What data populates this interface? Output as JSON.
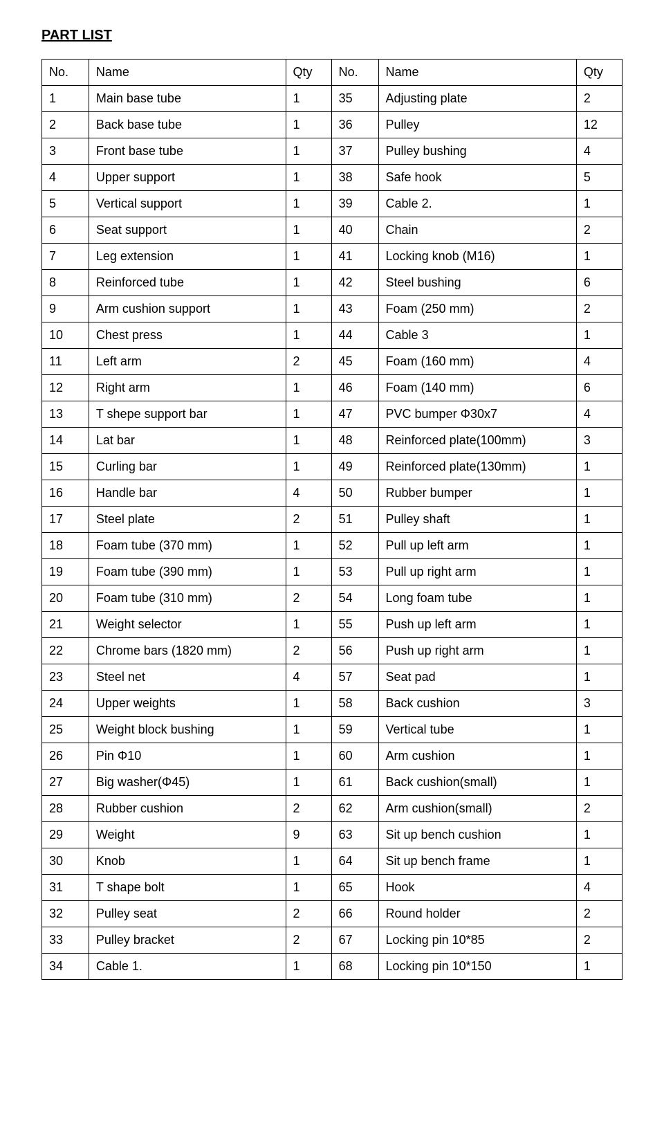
{
  "title": "PART LIST",
  "headers": {
    "no1": "No.",
    "name1": "Name",
    "qty1": "Qty",
    "no2": "No.",
    "name2": "Name",
    "qty2": "Qty"
  },
  "rows": [
    {
      "no1": "1",
      "name1": "Main base tube",
      "qty1": "1",
      "no2": "35",
      "name2": "Adjusting plate",
      "qty2": "2"
    },
    {
      "no1": "2",
      "name1": "Back base tube",
      "qty1": "1",
      "no2": "36",
      "name2": "Pulley",
      "qty2": "12"
    },
    {
      "no1": "3",
      "name1": "Front base tube",
      "qty1": "1",
      "no2": "37",
      "name2": "Pulley bushing",
      "qty2": "4"
    },
    {
      "no1": "4",
      "name1": "Upper support",
      "qty1": "1",
      "no2": "38",
      "name2": "Safe hook",
      "qty2": "5"
    },
    {
      "no1": "5",
      "name1": "Vertical support",
      "qty1": "1",
      "no2": "39",
      "name2": "Cable 2.",
      "qty2": "1"
    },
    {
      "no1": "6",
      "name1": "Seat support",
      "qty1": "1",
      "no2": "40",
      "name2": "Chain",
      "qty2": "2"
    },
    {
      "no1": "7",
      "name1": "Leg extension",
      "qty1": "1",
      "no2": "41",
      "name2": "Locking knob (M16)",
      "qty2": "1"
    },
    {
      "no1": "8",
      "name1": "Reinforced tube",
      "qty1": "1",
      "no2": "42",
      "name2": "Steel bushing",
      "qty2": "6"
    },
    {
      "no1": "9",
      "name1": "Arm cushion support",
      "qty1": "1",
      "no2": "43",
      "name2": "Foam (250 mm)",
      "qty2": "2"
    },
    {
      "no1": "10",
      "name1": "Chest press",
      "qty1": "1",
      "no2": "44",
      "name2": "Cable 3",
      "qty2": "1"
    },
    {
      "no1": "11",
      "name1": "Left arm",
      "qty1": "2",
      "no2": "45",
      "name2": "Foam (160 mm)",
      "qty2": "4"
    },
    {
      "no1": "12",
      "name1": "Right arm",
      "qty1": "1",
      "no2": "46",
      "name2": "Foam (140 mm)",
      "qty2": "6"
    },
    {
      "no1": "13",
      "name1": "T shepe support bar",
      "qty1": "1",
      "no2": "47",
      "name2": "PVC bumper Φ30x7",
      "qty2": "4"
    },
    {
      "no1": "14",
      "name1": "Lat bar",
      "qty1": "1",
      "no2": "48",
      "name2": "Reinforced plate(100mm)",
      "qty2": "3"
    },
    {
      "no1": "15",
      "name1": "Curling bar",
      "qty1": "1",
      "no2": "49",
      "name2": "Reinforced plate(130mm)",
      "qty2": "1"
    },
    {
      "no1": "16",
      "name1": "Handle bar",
      "qty1": "4",
      "no2": "50",
      "name2": "Rubber bumper",
      "qty2": "1"
    },
    {
      "no1": "17",
      "name1": "Steel plate",
      "qty1": "2",
      "no2": "51",
      "name2": "Pulley shaft",
      "qty2": "1"
    },
    {
      "no1": "18",
      "name1": "Foam tube (370 mm)",
      "qty1": "1",
      "no2": "52",
      "name2": "Pull up left arm",
      "qty2": "1"
    },
    {
      "no1": "19",
      "name1": "Foam tube (390 mm)",
      "qty1": "1",
      "no2": "53",
      "name2": "Pull up right arm",
      "qty2": "1"
    },
    {
      "no1": "20",
      "name1": "Foam tube (310 mm)",
      "qty1": "2",
      "no2": "54",
      "name2": "Long foam tube",
      "qty2": "1"
    },
    {
      "no1": "21",
      "name1": "Weight selector",
      "qty1": "1",
      "no2": "55",
      "name2": "Push up left arm",
      "qty2": "1"
    },
    {
      "no1": "22",
      "name1": "Chrome bars (1820 mm)",
      "qty1": "2",
      "no2": "56",
      "name2": "Push up right arm",
      "qty2": "1"
    },
    {
      "no1": "23",
      "name1": "Steel net",
      "qty1": "4",
      "no2": "57",
      "name2": "Seat pad",
      "qty2": "1"
    },
    {
      "no1": "24",
      "name1": "Upper weights",
      "qty1": "1",
      "no2": "58",
      "name2": "Back cushion",
      "qty2": "3"
    },
    {
      "no1": "25",
      "name1": "Weight block bushing",
      "qty1": "1",
      "no2": "59",
      "name2": "Vertical tube",
      "qty2": "1"
    },
    {
      "no1": "26",
      "name1": "Pin Φ10",
      "qty1": "1",
      "no2": "60",
      "name2": "Arm cushion",
      "qty2": "1"
    },
    {
      "no1": "27",
      "name1": "Big washer(Φ45)",
      "qty1": "1",
      "no2": "61",
      "name2": "Back cushion(small)",
      "qty2": "1"
    },
    {
      "no1": "28",
      "name1": "Rubber cushion",
      "qty1": "2",
      "no2": "62",
      "name2": "Arm cushion(small)",
      "qty2": "2"
    },
    {
      "no1": "29",
      "name1": "Weight",
      "qty1": "9",
      "no2": "63",
      "name2": "Sit up bench cushion",
      "qty2": "1"
    },
    {
      "no1": "30",
      "name1": "Knob",
      "qty1": "1",
      "no2": "64",
      "name2": "Sit up bench frame",
      "qty2": "1"
    },
    {
      "no1": "31",
      "name1": "T shape bolt",
      "qty1": "1",
      "no2": "65",
      "name2": "Hook",
      "qty2": "4"
    },
    {
      "no1": "32",
      "name1": "Pulley seat",
      "qty1": "2",
      "no2": "66",
      "name2": "Round holder",
      "qty2": "2"
    },
    {
      "no1": "33",
      "name1": "Pulley bracket",
      "qty1": "2",
      "no2": "67",
      "name2": "Locking pin 10*85",
      "qty2": "2"
    },
    {
      "no1": "34",
      "name1": "Cable 1.",
      "qty1": "1",
      "no2": "68",
      "name2": "Locking pin 10*150",
      "qty2": "1"
    }
  ]
}
